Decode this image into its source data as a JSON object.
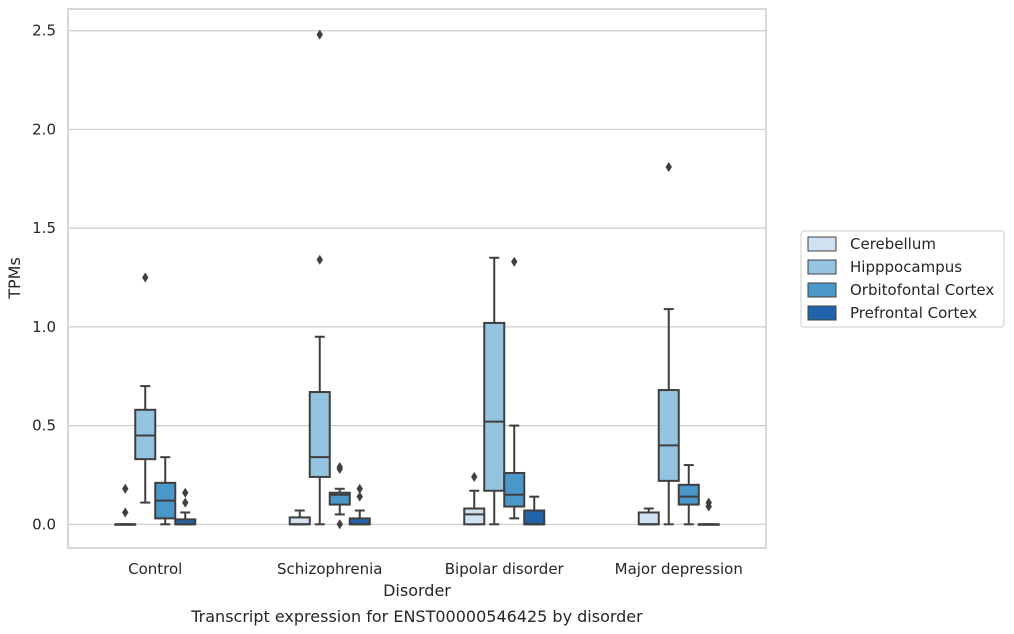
{
  "chart_data": {
    "type": "box",
    "title": "",
    "caption": "Transcript expression for ENST00000546425 by disorder",
    "xlabel": "Disorder",
    "ylabel": "TPMs",
    "ylim": [
      -0.12,
      2.61
    ],
    "yticks": [
      0.0,
      0.5,
      1.0,
      1.5,
      2.0,
      2.5
    ],
    "ytick_labels": [
      "0.0",
      "0.5",
      "1.0",
      "1.5",
      "2.0",
      "2.5"
    ],
    "grid": "horizontal",
    "legend_position": "right",
    "categories": [
      "Control",
      "Schizophrenia",
      "Bipolar disorder",
      "Major depression"
    ],
    "series": [
      {
        "name": "Cerebellum",
        "color": "#d0e1f2",
        "boxes": [
          {
            "whislo": 0.0,
            "q1": 0.0,
            "med": 0.0,
            "q3": 0.0,
            "whishi": 0.0,
            "fliers": [
              0.06,
              0.18
            ]
          },
          {
            "whislo": 0.0,
            "q1": 0.0,
            "med": 0.0,
            "q3": 0.035,
            "whishi": 0.07,
            "fliers": []
          },
          {
            "whislo": 0.0,
            "q1": 0.0,
            "med": 0.05,
            "q3": 0.08,
            "whishi": 0.17,
            "fliers": [
              0.24
            ]
          },
          {
            "whislo": 0.0,
            "q1": 0.0,
            "med": 0.0,
            "q3": 0.06,
            "whishi": 0.08,
            "fliers": []
          }
        ]
      },
      {
        "name": "Hipppocampus",
        "color": "#94c4df",
        "boxes": [
          {
            "whislo": 0.11,
            "q1": 0.33,
            "med": 0.45,
            "q3": 0.58,
            "whishi": 0.7,
            "fliers": [
              1.25
            ]
          },
          {
            "whislo": 0.0,
            "q1": 0.24,
            "med": 0.34,
            "q3": 0.67,
            "whishi": 0.95,
            "fliers": [
              1.34,
              2.48
            ]
          },
          {
            "whislo": 0.0,
            "q1": 0.17,
            "med": 0.52,
            "q3": 1.02,
            "whishi": 1.35,
            "fliers": []
          },
          {
            "whislo": 0.0,
            "q1": 0.22,
            "med": 0.4,
            "q3": 0.68,
            "whishi": 1.09,
            "fliers": [
              1.81
            ]
          }
        ]
      },
      {
        "name": "Orbitofontal Cortex",
        "color": "#4a98c9",
        "boxes": [
          {
            "whislo": 0.0,
            "q1": 0.03,
            "med": 0.12,
            "q3": 0.21,
            "whishi": 0.34,
            "fliers": []
          },
          {
            "whislo": 0.05,
            "q1": 0.1,
            "med": 0.15,
            "q3": 0.16,
            "whishi": 0.18,
            "fliers": [
              0.0,
              0.28,
              0.29
            ]
          },
          {
            "whislo": 0.03,
            "q1": 0.09,
            "med": 0.15,
            "q3": 0.26,
            "whishi": 0.5,
            "fliers": [
              1.33
            ]
          },
          {
            "whislo": 0.0,
            "q1": 0.1,
            "med": 0.14,
            "q3": 0.2,
            "whishi": 0.3,
            "fliers": []
          }
        ]
      },
      {
        "name": "Prefrontal Cortex",
        "color": "#2164ab",
        "boxes": [
          {
            "whislo": 0.0,
            "q1": 0.0,
            "med": 0.0,
            "q3": 0.025,
            "whishi": 0.06,
            "fliers": [
              0.11,
              0.16
            ]
          },
          {
            "whislo": 0.0,
            "q1": 0.0,
            "med": 0.0,
            "q3": 0.03,
            "whishi": 0.07,
            "fliers": [
              0.14,
              0.18
            ]
          },
          {
            "whislo": 0.0,
            "q1": 0.0,
            "med": 0.0,
            "q3": 0.07,
            "whishi": 0.14,
            "fliers": []
          },
          {
            "whislo": 0.0,
            "q1": 0.0,
            "med": 0.0,
            "q3": 0.0,
            "whishi": 0.0,
            "fliers": [
              0.09,
              0.11
            ]
          }
        ]
      }
    ]
  }
}
